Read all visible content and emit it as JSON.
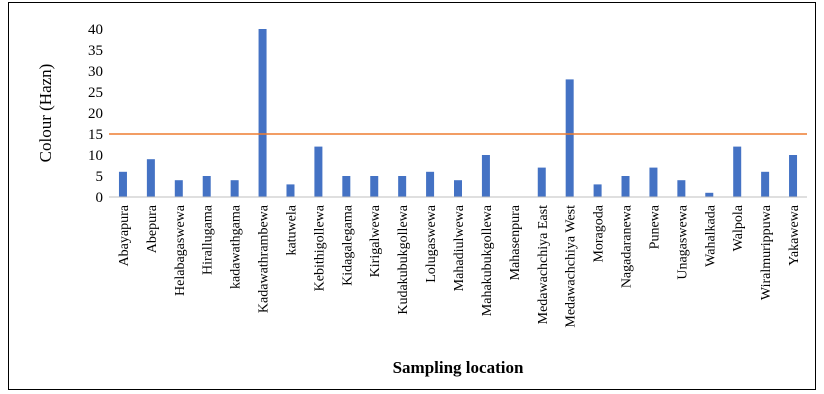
{
  "chart_data": {
    "type": "bar",
    "title": "",
    "xlabel": "Sampling location",
    "ylabel": "Colour (Hazn)",
    "ylim": [
      0,
      40
    ],
    "yticks": [
      0,
      5,
      10,
      15,
      20,
      25,
      30,
      35,
      40
    ],
    "grid": false,
    "categories": [
      "Abayapura",
      "Abepura",
      "Helabagaswewa",
      "Hirallugama",
      "kadawathgama",
      "Kadawathrambewa",
      "katuwela",
      "Kebithigollewa",
      "Kidagalegama",
      "Kirigalwewa",
      "Kudakubukgollewa",
      "Lolugaswewa",
      "Mahadiulwewa",
      "Mahakubukgollewa",
      "Mahasenpura",
      "Medawachchiya East",
      "Medawachchiya West",
      "Moragoda",
      "Nagadaranewa",
      "Punewa",
      "Unagaswewa",
      "Wahalkada",
      "Walpola",
      "Wiralmurippuwa",
      "Yakawewa"
    ],
    "series": [
      {
        "values": [
          6,
          9,
          4,
          5,
          4,
          40,
          3,
          12,
          5,
          5,
          5,
          6,
          4,
          10,
          0,
          7,
          28,
          3,
          5,
          7,
          4,
          1,
          12,
          6,
          10
        ],
        "color": "#4472C4"
      }
    ],
    "reference_line": {
      "value": 15,
      "color": "#ED7D31"
    }
  }
}
